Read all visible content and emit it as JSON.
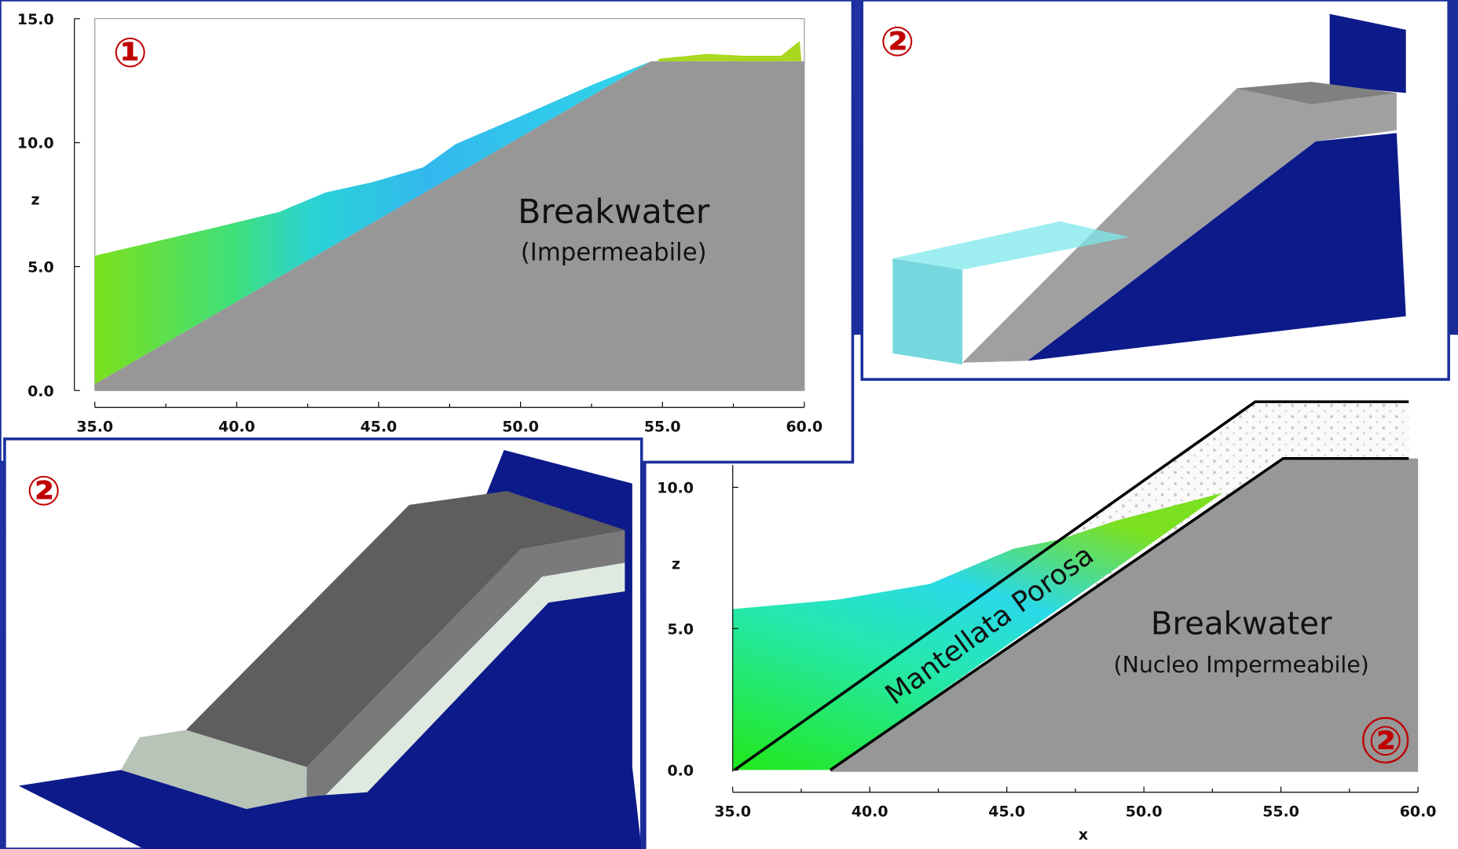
{
  "panels": [
    {
      "badge": "①",
      "label": "Breakwater",
      "sublabel": "(Impermeabile)",
      "y_axis_label": "z",
      "yticks": [
        "0.0",
        "5.0",
        "10.0",
        "15.0"
      ],
      "xticks": [
        "35.0",
        "40.0",
        "45.0",
        "50.0",
        "55.0",
        "60.0"
      ]
    },
    {
      "badge": "②"
    },
    {
      "badge": "②"
    },
    {
      "badge": "②",
      "label": "Breakwater",
      "sublabel": "(Nucleo Impermeabile)",
      "layer_label": "Mantellata Porosa",
      "y_axis_label": "z",
      "x_axis_label": "x",
      "yticks": [
        "0.0",
        "5.0",
        "10.0"
      ],
      "xticks": [
        "35.0",
        "40.0",
        "45.0",
        "50.0",
        "55.0",
        "60.0"
      ]
    }
  ]
}
